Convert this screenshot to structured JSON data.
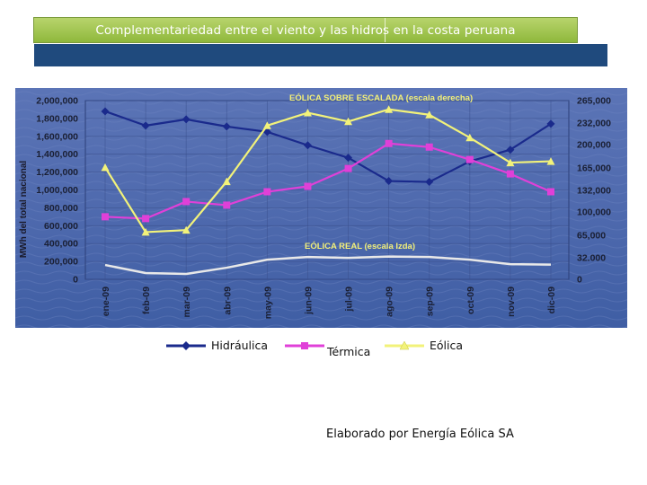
{
  "slide": {
    "title": "Complementariedad entre el viento y las hidros en la costa peruana",
    "credit": "Elaborado por Energía Eólica SA"
  },
  "legend": [
    {
      "label": "Hidráulica",
      "color": "#1a2a8c",
      "marker": "diamond"
    },
    {
      "label": "Térmica",
      "color": "#e040d8",
      "marker": "square"
    },
    {
      "label": "Eólica",
      "color": "#f2f27a",
      "marker": "triangle"
    }
  ],
  "chart_data": {
    "type": "line",
    "categories": [
      "ene-09",
      "feb-09",
      "mar-09",
      "abr-09",
      "may-09",
      "jun-09",
      "jul-09",
      "ago-09",
      "sep-09",
      "oct-09",
      "nov-09",
      "dic-09"
    ],
    "ylabel": "MWh del total nacional",
    "left_axis": {
      "ylim": [
        0,
        2000000
      ],
      "ticks": [
        "0",
        "200,000",
        "400,000",
        "600,000",
        "800,000",
        "1,000,000",
        "1,200,000",
        "1,400,000",
        "1,600,000",
        "1,800,000",
        "2,000,000"
      ]
    },
    "right_axis": {
      "ylim": [
        0,
        265000
      ],
      "ticks": [
        "0",
        "32.000",
        "65,000",
        "100,000",
        "132,000",
        "165,000",
        "200,000",
        "232,000",
        "265,000"
      ],
      "tick_values": [
        0,
        32000,
        65000,
        100000,
        132000,
        165000,
        200000,
        232000,
        265000
      ]
    },
    "annotations": [
      "EÓLICA SOBRE ESCALADA (escala derecha)",
      "EÓLICA REAL (escala Izda)"
    ],
    "series": [
      {
        "name": "Hidráulica",
        "axis": "left",
        "color": "#1a2a8c",
        "marker": "diamond",
        "values": [
          1880000,
          1720000,
          1790000,
          1710000,
          1650000,
          1500000,
          1360000,
          1100000,
          1090000,
          1320000,
          1450000,
          1740000
        ]
      },
      {
        "name": "Térmica",
        "axis": "left",
        "color": "#e040d8",
        "marker": "square",
        "values": [
          700000,
          680000,
          870000,
          830000,
          980000,
          1040000,
          1240000,
          1520000,
          1480000,
          1340000,
          1180000,
          980000
        ]
      },
      {
        "name": "Eólica",
        "axis": "right",
        "color": "#f2f27a",
        "marker": "triangle",
        "values": [
          166000,
          70000,
          73000,
          145000,
          228000,
          247000,
          234000,
          252000,
          244000,
          210000,
          173000,
          175000
        ]
      },
      {
        "name": "Eólica real",
        "axis": "left",
        "color": "#e8e8e8",
        "marker": "none",
        "values": [
          160000,
          70000,
          60000,
          130000,
          220000,
          250000,
          240000,
          255000,
          250000,
          220000,
          170000,
          165000
        ]
      }
    ]
  }
}
